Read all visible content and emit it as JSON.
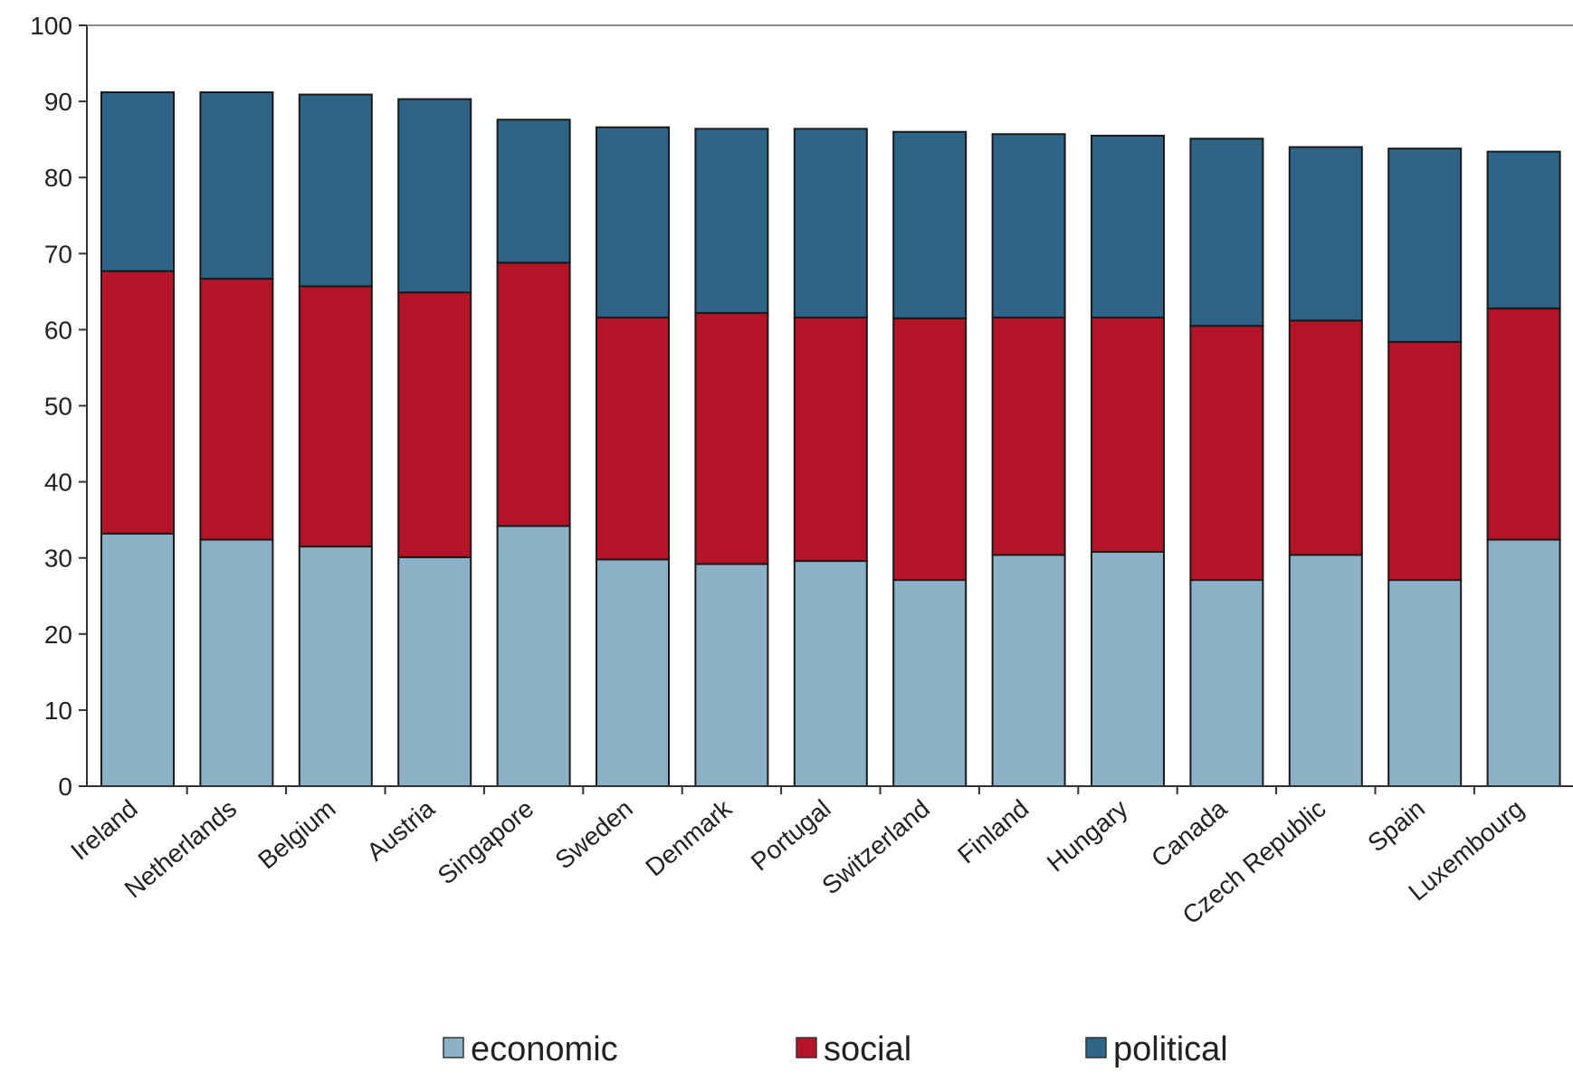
{
  "chart_data": {
    "type": "bar",
    "stacked": true,
    "title": "",
    "xlabel": "",
    "ylabel": "",
    "ylim": [
      0,
      100
    ],
    "yticks": [
      0,
      10,
      20,
      30,
      40,
      50,
      60,
      70,
      80,
      90,
      100
    ],
    "grid": false,
    "legend_position": "bottom",
    "categories": [
      "Ireland",
      "Netherlands",
      "Belgium",
      "Austria",
      "Singapore",
      "Sweden",
      "Denmark",
      "Portugal",
      "Switzerland",
      "Finland",
      "Hungary",
      "Canada",
      "Czech Republic",
      "Spain",
      "Luxembourg"
    ],
    "series": [
      {
        "name": "economic",
        "color": "#8cb0c6",
        "values": [
          33.2,
          32.4,
          31.5,
          30.1,
          34.2,
          29.8,
          29.2,
          29.6,
          27.1,
          30.4,
          30.8,
          27.1,
          30.4,
          27.1,
          32.4
        ]
      },
      {
        "name": "social",
        "color": "#b41428",
        "values": [
          34.5,
          34.3,
          34.2,
          34.8,
          34.6,
          31.8,
          33.0,
          32.0,
          34.4,
          31.2,
          30.8,
          33.4,
          30.8,
          31.3,
          30.4
        ]
      },
      {
        "name": "political",
        "color": "#2e6487",
        "values": [
          23.5,
          24.5,
          25.2,
          25.4,
          18.8,
          25.0,
          24.2,
          24.8,
          24.5,
          24.1,
          23.9,
          24.6,
          22.8,
          25.4,
          20.6
        ]
      }
    ]
  }
}
